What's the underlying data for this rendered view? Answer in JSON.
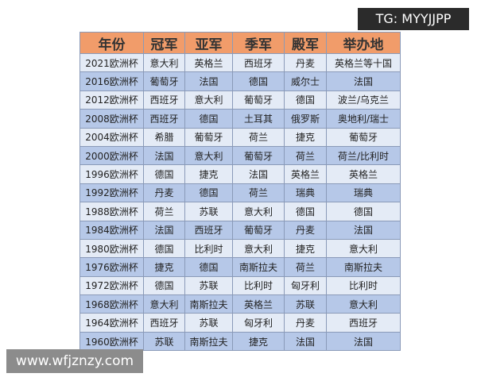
{
  "table": {
    "header": [
      "年份",
      "冠军",
      "亚军",
      "季军",
      "殿军",
      "举办地"
    ],
    "rows": [
      [
        "2021欧洲杯",
        "意大利",
        "英格兰",
        "西班牙",
        "丹麦",
        "英格兰等十国"
      ],
      [
        "2016欧洲杯",
        "葡萄牙",
        "法国",
        "德国",
        "威尔士",
        "法国"
      ],
      [
        "2012欧洲杯",
        "西班牙",
        "意大利",
        "葡萄牙",
        "德国",
        "波兰/乌克兰"
      ],
      [
        "2008欧洲杯",
        "西班牙",
        "德国",
        "土耳其",
        "俄罗斯",
        "奥地利/瑞士"
      ],
      [
        "2004欧洲杯",
        "希腊",
        "葡萄牙",
        "荷兰",
        "捷克",
        "葡萄牙"
      ],
      [
        "2000欧洲杯",
        "法国",
        "意大利",
        "葡萄牙",
        "荷兰",
        "荷兰/比利时"
      ],
      [
        "1996欧洲杯",
        "德国",
        "捷克",
        "法国",
        "英格兰",
        "英格兰"
      ],
      [
        "1992欧洲杯",
        "丹麦",
        "德国",
        "荷兰",
        "瑞典",
        "瑞典"
      ],
      [
        "1988欧洲杯",
        "荷兰",
        "苏联",
        "意大利",
        "德国",
        "德国"
      ],
      [
        "1984欧洲杯",
        "法国",
        "西班牙",
        "葡萄牙",
        "丹麦",
        "法国"
      ],
      [
        "1980欧洲杯",
        "德国",
        "比利时",
        "意大利",
        "捷克",
        "意大利"
      ],
      [
        "1976欧洲杯",
        "捷克",
        "德国",
        "南斯拉夫",
        "荷兰",
        "南斯拉夫"
      ],
      [
        "1972欧洲杯",
        "德国",
        "苏联",
        "比利时",
        "匈牙利",
        "比利时"
      ],
      [
        "1968欧洲杯",
        "意大利",
        "南斯拉夫",
        "英格兰",
        "苏联",
        "意大利"
      ],
      [
        "1964欧洲杯",
        "西班牙",
        "苏联",
        "匈牙利",
        "丹麦",
        "西班牙"
      ],
      [
        "1960欧洲杯",
        "苏联",
        "南斯拉夫",
        "捷克",
        "法国",
        "法国"
      ]
    ]
  },
  "overlays": {
    "tg": "TG: MYYJJPP",
    "site": "www.wfjznzy.com"
  }
}
